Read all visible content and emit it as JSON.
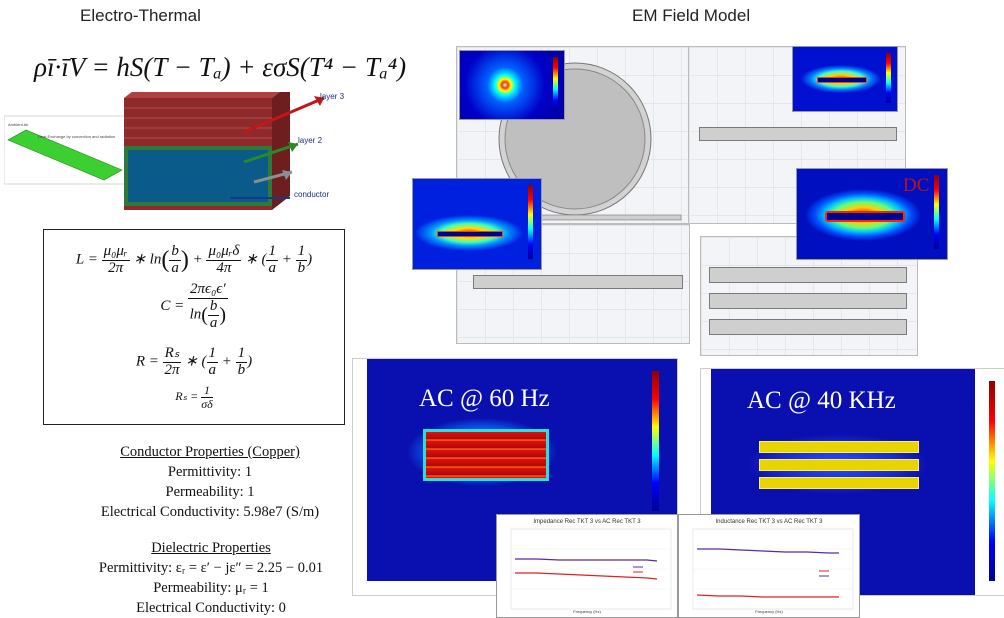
{
  "headings": {
    "left": "Electro-Thermal",
    "right": "EM Field Model"
  },
  "thermal_equation": "ρī·īV = hS(T − Tₐ) + εσS(T⁴ − Tₐ⁴)",
  "layer_diagram": {
    "labels": [
      "layer 3",
      "layer 2",
      "conductor"
    ],
    "inset_title": "Heat Exchange by convection and radiation",
    "inset_caption": "Ambient Air"
  },
  "formulas": {
    "L": {
      "lhs": "L =",
      "t1_num": "μ₀μᵣ",
      "t1_den": "2π",
      "t1_tail": "∗ ln",
      "ba_num": "b",
      "ba_den": "a",
      "plus": "+",
      "t2_num": "μ₀μᵣδ",
      "t2_den": "4π",
      "t2_tail": "∗ (",
      "i1_num": "1",
      "i1_den": "a",
      "plus2": "+",
      "i2_num": "1",
      "i2_den": "b",
      "close": ")"
    },
    "C": {
      "lhs": "C =",
      "num": "2πϵ₀ϵ′",
      "den_pre": "ln",
      "den_num": "b",
      "den_den": "a"
    },
    "R": {
      "lhs": "R =",
      "num": "Rₛ",
      "den": "2π",
      "tail": "∗ (",
      "i1_num": "1",
      "i1_den": "a",
      "plus": "+",
      "i2_num": "1",
      "i2_den": "b",
      "close": ")"
    },
    "Rs": {
      "lhs": "Rₛ =",
      "num": "1",
      "den": "σδ"
    }
  },
  "conductor": {
    "title": "Conductor Properties (Copper)",
    "permittivity": "Permittivity: 1",
    "permeability": "Permeability: 1",
    "conductivity": "Electrical Conductivity: 5.98e7 (S/m)"
  },
  "dielectric": {
    "title": "Dielectric Properties",
    "permittivity": "Permittivity: εᵣ = ε′ − jε″ = 2.25 − 0.01",
    "permeability": "Permeability: μᵣ = 1",
    "conductivity": "Electrical Conductivity: 0"
  },
  "field_labels": {
    "dc": "DC",
    "ac60": "AC @ 60 Hz",
    "ac40k": "AC @ 40 KHz"
  },
  "mini_charts": {
    "impedance_title": "Impedance Rec TKT 3 vs AC Rec TKT 3",
    "inductance_title": "Inductance Rec TKT 3 vs AC Rec TKT 3",
    "xlabel": "Frequency (Hz)"
  },
  "colors": {
    "heat_low": "#00008f",
    "heat_high": "#8f0000",
    "layer_red": "#8e2a2a",
    "conductor_blue": "#0a5a8a",
    "series_red": "#e02020",
    "series_purple": "#5a2aa0"
  }
}
